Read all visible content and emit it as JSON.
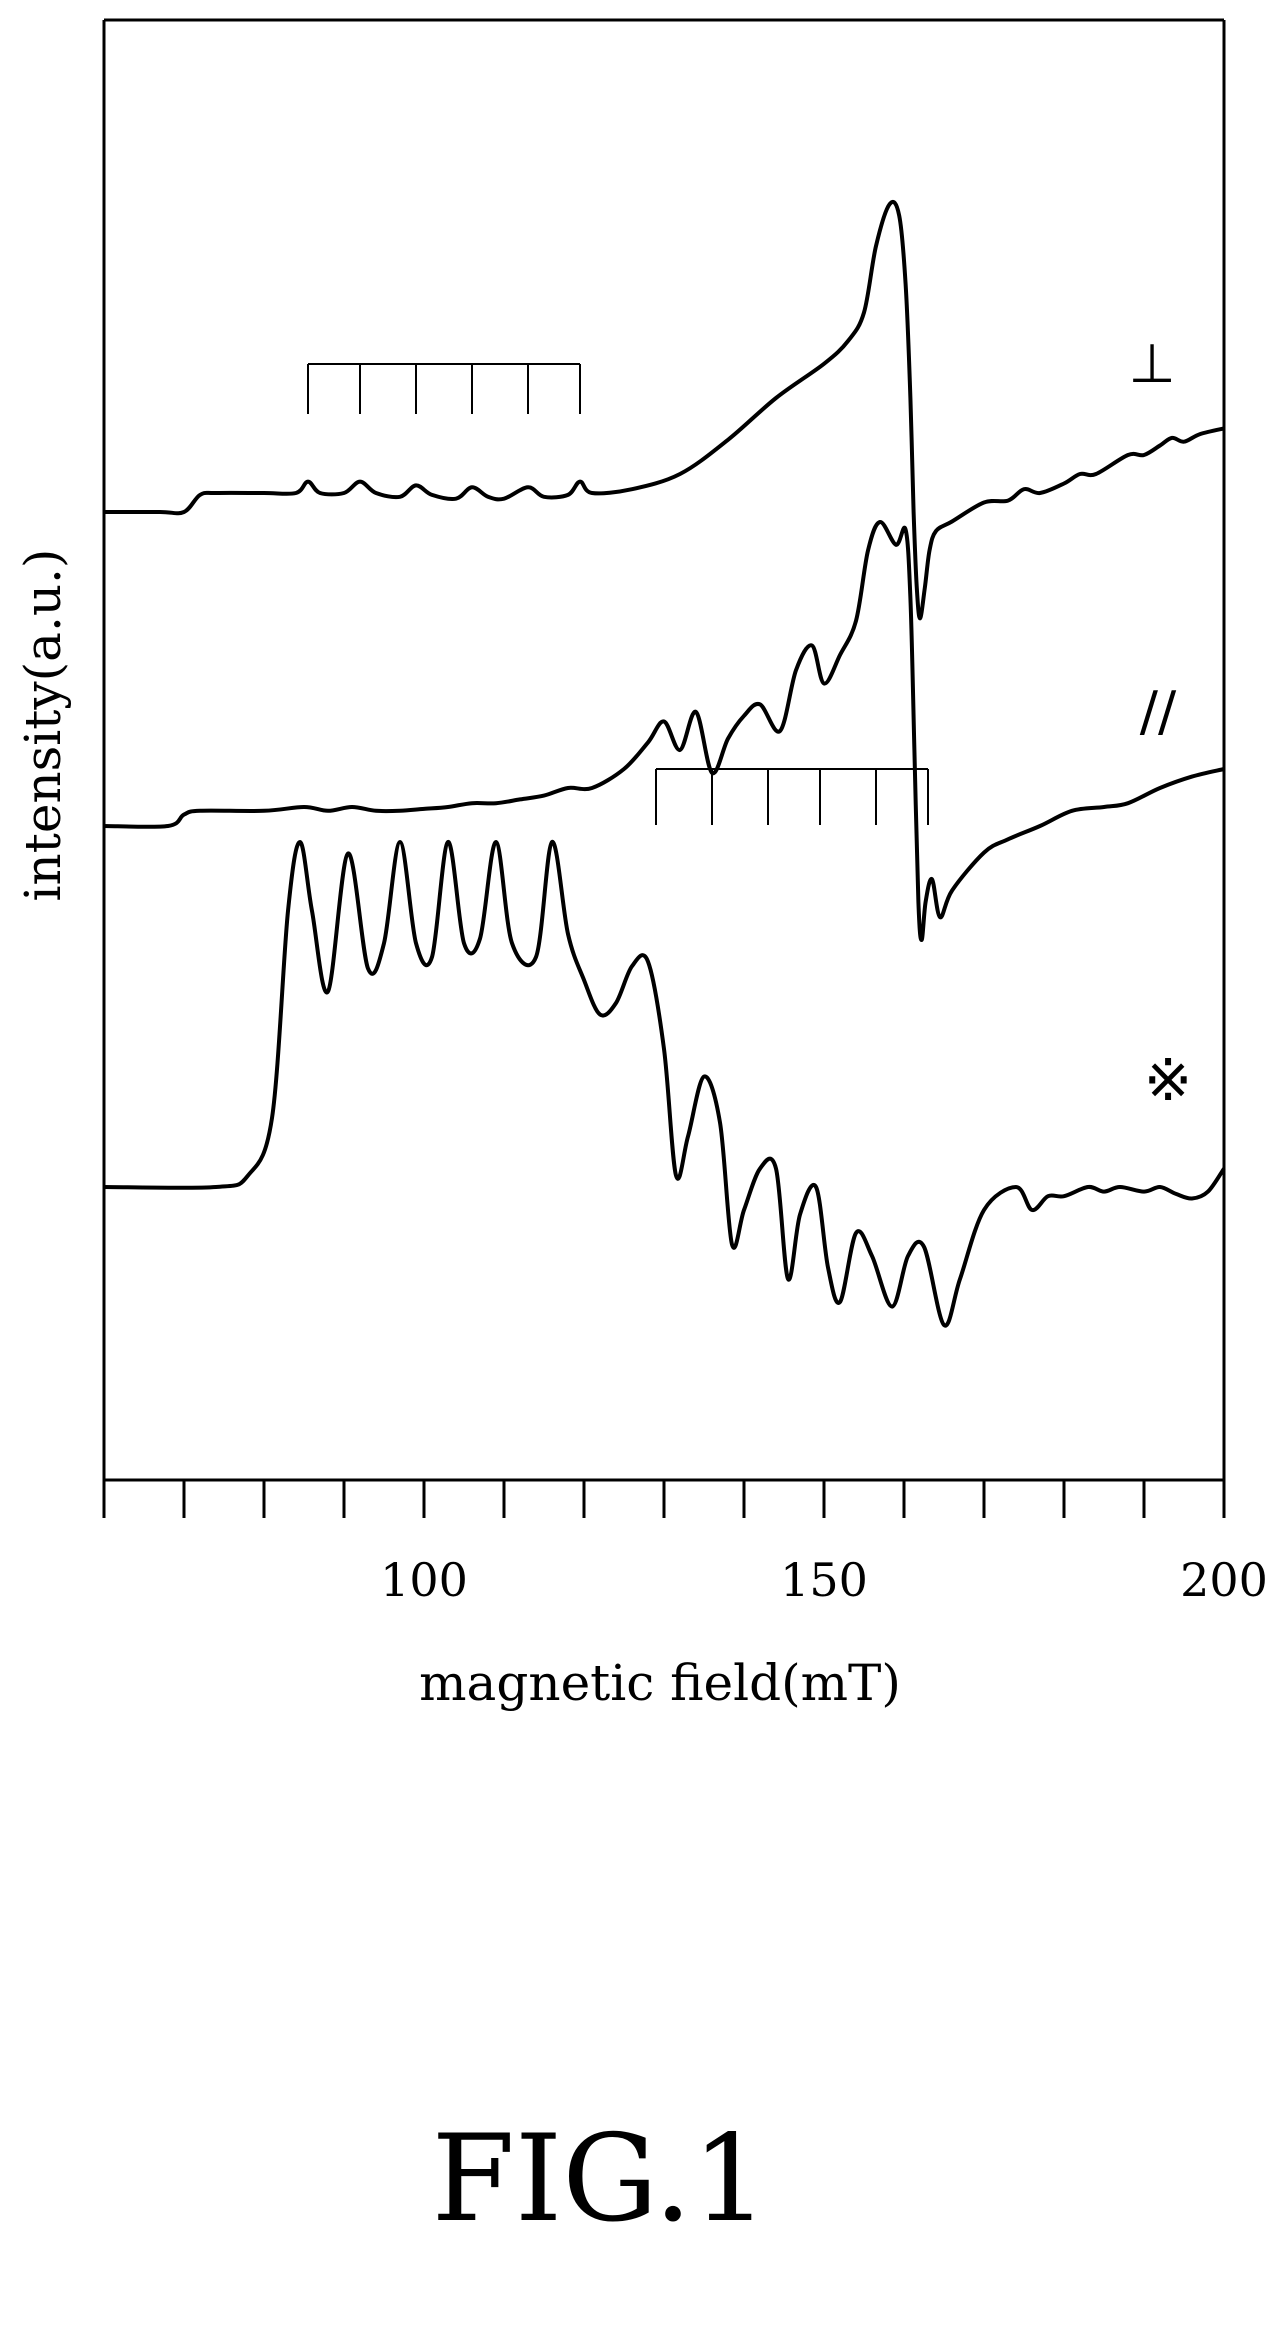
{
  "figure_label": "FIG.1",
  "chart_data": {
    "type": "line",
    "title": "",
    "xlabel": "magnetic field(mT)",
    "ylabel": "intensity(a.u.)",
    "xlim": [
      60,
      200
    ],
    "x_tick_labels": [
      {
        "value": 100,
        "label": "100"
      },
      {
        "value": 150,
        "label": "150"
      },
      {
        "value": 200,
        "label": "200"
      }
    ],
    "x_minor_ticks": [
      60,
      70,
      80,
      90,
      100,
      110,
      120,
      130,
      140,
      150,
      160,
      170,
      180,
      190,
      200
    ],
    "grid": false,
    "y_ticks_shown": false,
    "series": [
      {
        "marker": "⊥",
        "baseline": 0.0,
        "comb": {
          "positions": [
            85.5,
            92,
            99,
            106,
            113,
            119.5
          ]
        },
        "points": [
          [
            60,
            0
          ],
          [
            67,
            0
          ],
          [
            70,
            0
          ],
          [
            72,
            0.09
          ],
          [
            74,
            0.1
          ],
          [
            80,
            0.1
          ],
          [
            84,
            0.1
          ],
          [
            85.5,
            0.16
          ],
          [
            87,
            0.1
          ],
          [
            90,
            0.1
          ],
          [
            92,
            0.16
          ],
          [
            94,
            0.1
          ],
          [
            97,
            0.08
          ],
          [
            99,
            0.14
          ],
          [
            101,
            0.09
          ],
          [
            104,
            0.07
          ],
          [
            106,
            0.13
          ],
          [
            108,
            0.08
          ],
          [
            110,
            0.07
          ],
          [
            113,
            0.13
          ],
          [
            115,
            0.08
          ],
          [
            118,
            0.09
          ],
          [
            119.5,
            0.16
          ],
          [
            121,
            0.1
          ],
          [
            126,
            0.12
          ],
          [
            132,
            0.2
          ],
          [
            138,
            0.38
          ],
          [
            144,
            0.6
          ],
          [
            150,
            0.78
          ],
          [
            153,
            0.9
          ],
          [
            155,
            1.05
          ],
          [
            156.5,
            1.4
          ],
          [
            158.2,
            1.62
          ],
          [
            159.4,
            1.56
          ],
          [
            160.2,
            1.2
          ],
          [
            160.8,
            0.6
          ],
          [
            161.2,
            0.0
          ],
          [
            161.6,
            -0.4
          ],
          [
            162,
            -0.56
          ],
          [
            162.6,
            -0.4
          ],
          [
            163.2,
            -0.2
          ],
          [
            164,
            -0.1
          ],
          [
            166,
            -0.05
          ],
          [
            170,
            0.05
          ],
          [
            173,
            0.06
          ],
          [
            175,
            0.12
          ],
          [
            177,
            0.1
          ],
          [
            180,
            0.15
          ],
          [
            182,
            0.2
          ],
          [
            184,
            0.2
          ],
          [
            188,
            0.3
          ],
          [
            190,
            0.3
          ],
          [
            192,
            0.35
          ],
          [
            193.5,
            0.39
          ],
          [
            195,
            0.37
          ],
          [
            197,
            0.41
          ],
          [
            200,
            0.44
          ]
        ]
      },
      {
        "marker": "//",
        "baseline": 0.0,
        "comb": {
          "positions": [
            129,
            136,
            143,
            149.5,
            156.5,
            163
          ]
        },
        "points": [
          [
            60,
            0
          ],
          [
            68,
            0
          ],
          [
            70,
            0.06
          ],
          [
            72,
            0.08
          ],
          [
            80,
            0.08
          ],
          [
            85,
            0.1
          ],
          [
            88,
            0.08
          ],
          [
            91,
            0.1
          ],
          [
            94,
            0.08
          ],
          [
            97,
            0.08
          ],
          [
            100,
            0.09
          ],
          [
            103,
            0.1
          ],
          [
            106,
            0.12
          ],
          [
            109,
            0.12
          ],
          [
            112,
            0.14
          ],
          [
            115,
            0.16
          ],
          [
            118,
            0.2
          ],
          [
            121,
            0.2
          ],
          [
            125,
            0.3
          ],
          [
            128,
            0.44
          ],
          [
            130,
            0.55
          ],
          [
            132,
            0.4
          ],
          [
            134,
            0.6
          ],
          [
            136,
            0.28
          ],
          [
            138,
            0.46
          ],
          [
            140,
            0.58
          ],
          [
            142,
            0.64
          ],
          [
            144.5,
            0.5
          ],
          [
            146.5,
            0.82
          ],
          [
            148.5,
            0.95
          ],
          [
            150,
            0.75
          ],
          [
            152,
            0.9
          ],
          [
            154,
            1.08
          ],
          [
            155.5,
            1.45
          ],
          [
            157,
            1.6
          ],
          [
            159,
            1.48
          ],
          [
            160.2,
            1.56
          ],
          [
            160.8,
            1.2
          ],
          [
            161.3,
            0.4
          ],
          [
            161.8,
            -0.4
          ],
          [
            162.2,
            -0.6
          ],
          [
            162.7,
            -0.4
          ],
          [
            163.5,
            -0.28
          ],
          [
            164.5,
            -0.48
          ],
          [
            166,
            -0.34
          ],
          [
            170,
            -0.14
          ],
          [
            173,
            -0.07
          ],
          [
            177,
            0.0
          ],
          [
            181,
            0.08
          ],
          [
            185,
            0.1
          ],
          [
            188,
            0.12
          ],
          [
            192,
            0.2
          ],
          [
            196,
            0.26
          ],
          [
            200,
            0.3
          ]
        ]
      },
      {
        "marker": "※",
        "baseline": 0.0,
        "comb": null,
        "points": [
          [
            60,
            0
          ],
          [
            74,
            0
          ],
          [
            78,
            0.05
          ],
          [
            81,
            0.3
          ],
          [
            83,
            1.2
          ],
          [
            84.5,
            1.5
          ],
          [
            86,
            1.2
          ],
          [
            88,
            0.85
          ],
          [
            90.5,
            1.45
          ],
          [
            93,
            0.95
          ],
          [
            95,
            1.06
          ],
          [
            97,
            1.5
          ],
          [
            99,
            1.06
          ],
          [
            101,
            1.0
          ],
          [
            103,
            1.5
          ],
          [
            105,
            1.06
          ],
          [
            107,
            1.08
          ],
          [
            109,
            1.5
          ],
          [
            111,
            1.06
          ],
          [
            114,
            1.0
          ],
          [
            116,
            1.5
          ],
          [
            118,
            1.1
          ],
          [
            120,
            0.9
          ],
          [
            122,
            0.75
          ],
          [
            124,
            0.8
          ],
          [
            126,
            0.96
          ],
          [
            128,
            0.98
          ],
          [
            130,
            0.6
          ],
          [
            131.5,
            0.05
          ],
          [
            133,
            0.22
          ],
          [
            135,
            0.48
          ],
          [
            137,
            0.28
          ],
          [
            138.5,
            -0.25
          ],
          [
            140,
            -0.1
          ],
          [
            142,
            0.08
          ],
          [
            144,
            0.08
          ],
          [
            145.5,
            -0.4
          ],
          [
            147,
            -0.12
          ],
          [
            149,
            0.0
          ],
          [
            150.5,
            -0.35
          ],
          [
            152,
            -0.5
          ],
          [
            154,
            -0.2
          ],
          [
            156,
            -0.3
          ],
          [
            158.5,
            -0.52
          ],
          [
            160.5,
            -0.3
          ],
          [
            162.5,
            -0.26
          ],
          [
            165,
            -0.6
          ],
          [
            167,
            -0.4
          ],
          [
            170,
            -0.1
          ],
          [
            174,
            0.0
          ],
          [
            176,
            -0.1
          ],
          [
            178,
            -0.04
          ],
          [
            180,
            -0.04
          ],
          [
            183,
            0.0
          ],
          [
            185,
            -0.02
          ],
          [
            187,
            0.0
          ],
          [
            190,
            -0.02
          ],
          [
            192,
            0.0
          ],
          [
            194,
            -0.03
          ],
          [
            196,
            -0.05
          ],
          [
            198,
            -0.02
          ],
          [
            200,
            0.08
          ]
        ]
      }
    ]
  }
}
